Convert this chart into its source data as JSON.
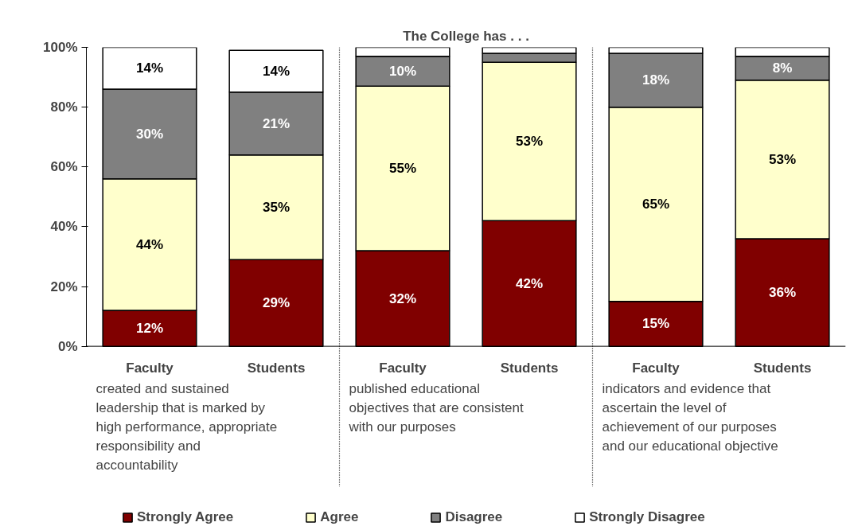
{
  "chart_data": {
    "type": "bar",
    "stacked": true,
    "title": "The College has . . .",
    "categories": [
      "Faculty",
      "Students",
      "Faculty",
      "Students",
      "Faculty",
      "Students"
    ],
    "series": [
      {
        "name": "Strongly Agree",
        "color": "#800000",
        "values": [
          12,
          29,
          32,
          42,
          15,
          36
        ],
        "value_labels": [
          "12%",
          "29%",
          "32%",
          "42%",
          "15%",
          "36%"
        ]
      },
      {
        "name": "Agree",
        "color": "#ffffcc",
        "values": [
          44,
          35,
          55,
          53,
          65,
          53
        ],
        "value_labels": [
          "44%",
          "35%",
          "55%",
          "53%",
          "65%",
          "53%"
        ]
      },
      {
        "name": "Disagree",
        "color": "#808080",
        "values": [
          30,
          21,
          10,
          3,
          18,
          8
        ],
        "value_labels": [
          "30%",
          "21%",
          "10%",
          null,
          "18%",
          "8%"
        ]
      },
      {
        "name": "Strongly Disagree",
        "color": "#ffffff",
        "values": [
          14,
          14,
          3,
          2,
          2,
          3
        ],
        "value_labels": [
          "14%",
          "14%",
          null,
          null,
          null,
          null
        ]
      }
    ],
    "ylim": [
      0,
      100
    ],
    "yticks": [
      {
        "value": 0,
        "label": "0%"
      },
      {
        "value": 20,
        "label": "20%"
      },
      {
        "value": 40,
        "label": "40%"
      },
      {
        "value": 60,
        "label": "60%"
      },
      {
        "value": 80,
        "label": "80%"
      },
      {
        "value": 100,
        "label": "100%"
      }
    ],
    "annotations": [
      "created and sustained leadership that is marked by high performance, appropriate responsibility and accountability",
      "published educational objectives that are consistent with our purposes",
      "indicators and evidence that ascertain the level of achievement of our purposes and our educational objective"
    ],
    "legend": "bottom",
    "grid": false
  }
}
